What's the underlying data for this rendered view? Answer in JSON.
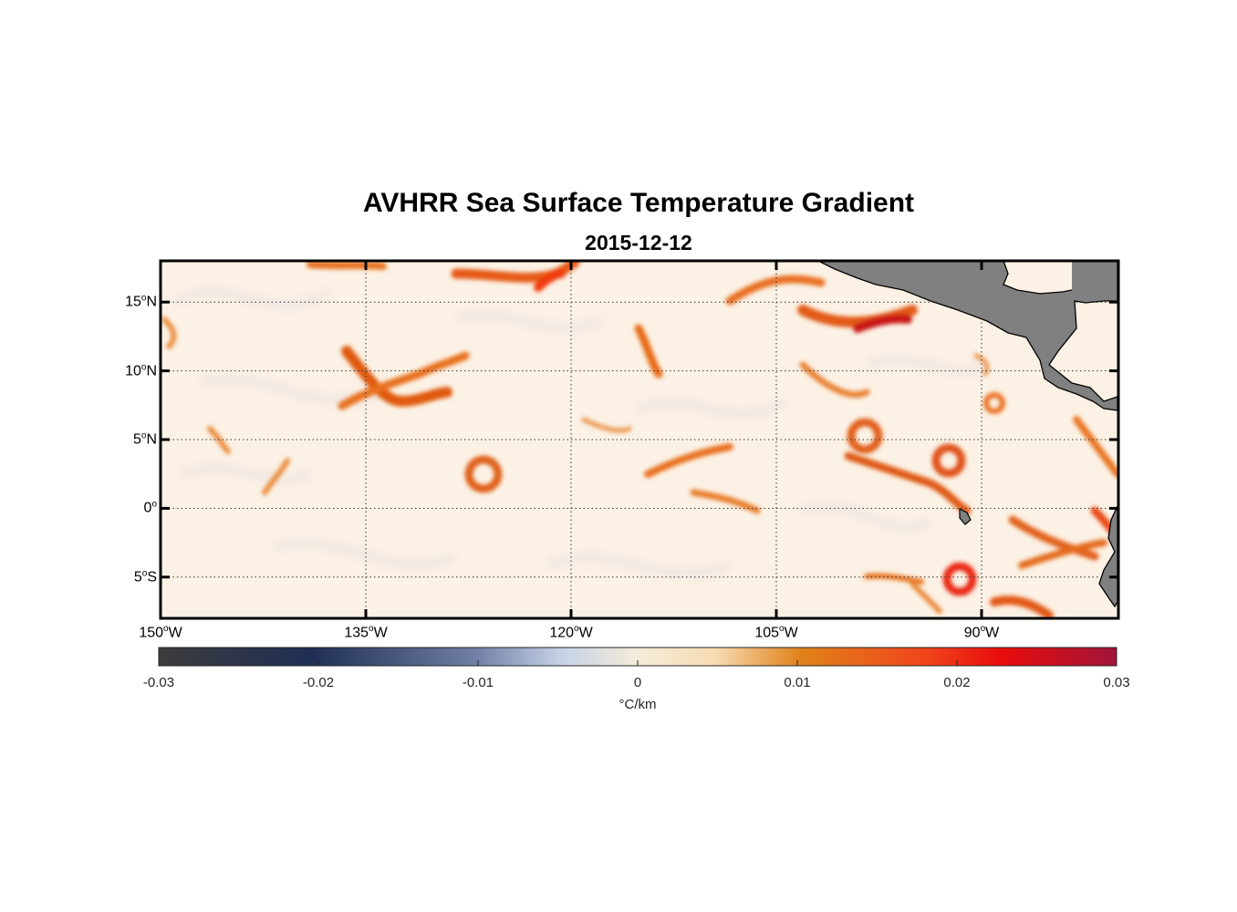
{
  "title": "AVHRR Sea Surface Temperature Gradient",
  "subtitle": "2015-12-12",
  "map": {
    "projection": "equirectangular",
    "lon_range": [
      -150,
      -80
    ],
    "lat_range": [
      -8,
      18
    ],
    "land_color": "#808080",
    "coastline_color": "#000000",
    "grid": "dotted",
    "lat_ticks": [
      {
        "value": 15,
        "num": "15",
        "hemi": "N"
      },
      {
        "value": 10,
        "num": "10",
        "hemi": "N"
      },
      {
        "value": 5,
        "num": "5",
        "hemi": "N"
      },
      {
        "value": 0,
        "num": "0",
        "hemi": ""
      },
      {
        "value": -5,
        "num": "5",
        "hemi": "S"
      }
    ],
    "lon_ticks": [
      {
        "value": -150,
        "num": "150",
        "hemi": "W"
      },
      {
        "value": -135,
        "num": "135",
        "hemi": "W"
      },
      {
        "value": -120,
        "num": "120",
        "hemi": "W"
      },
      {
        "value": -105,
        "num": "105",
        "hemi": "W"
      },
      {
        "value": -90,
        "num": "90",
        "hemi": "W"
      }
    ],
    "degree_symbol": "o"
  },
  "colorbar": {
    "min": -0.03,
    "max": 0.03,
    "ticks": [
      "-0.03",
      "-0.02",
      "-0.01",
      "0",
      "0.01",
      "0.02",
      "0.03"
    ],
    "units_prefix": "°",
    "units": "C/km",
    "colors": [
      "#3c3c3c",
      "#1f2f55",
      "#6f7fa5",
      "#c6d2e6",
      "#f5ecd9",
      "#e0821a",
      "#f0451c",
      "#e80c0c",
      "#a0153a"
    ]
  }
}
